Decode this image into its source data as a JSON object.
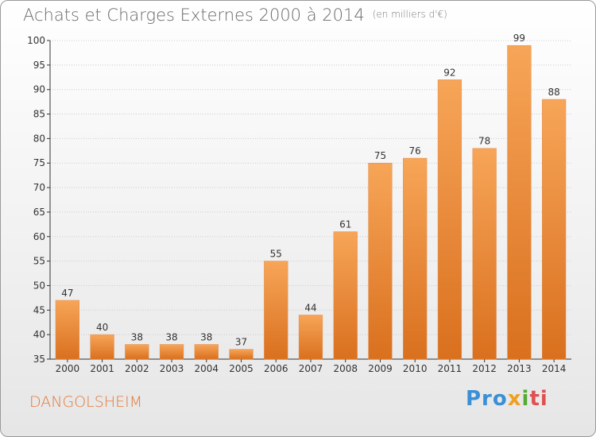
{
  "header": {
    "title": "Achats et Charges Externes 2000 à 2014",
    "subtitle": "(en milliers d'€)"
  },
  "footer": {
    "commune": "DANGOLSHEIM",
    "logo_parts": [
      "Pro",
      "x",
      "i",
      "ti"
    ]
  },
  "colors": {
    "bar_top": "#f7a558",
    "bar_bottom": "#d9701e",
    "axis": "#333333",
    "grid": "#cccccc",
    "commune": "#e2783a"
  },
  "chart_data": {
    "type": "bar",
    "title": "Achats et Charges Externes 2000 à 2014",
    "subtitle": "(en milliers d'€)",
    "categories": [
      "2000",
      "2001",
      "2002",
      "2003",
      "2004",
      "2005",
      "2006",
      "2007",
      "2008",
      "2009",
      "2010",
      "2011",
      "2012",
      "2013",
      "2014"
    ],
    "values": [
      47,
      40,
      38,
      38,
      38,
      37,
      55,
      44,
      61,
      75,
      76,
      92,
      78,
      99,
      88
    ],
    "ylim": [
      35,
      100
    ],
    "yticks": [
      35,
      40,
      45,
      50,
      55,
      60,
      65,
      70,
      75,
      80,
      85,
      90,
      95,
      100
    ],
    "grid": true,
    "legend": "none"
  }
}
